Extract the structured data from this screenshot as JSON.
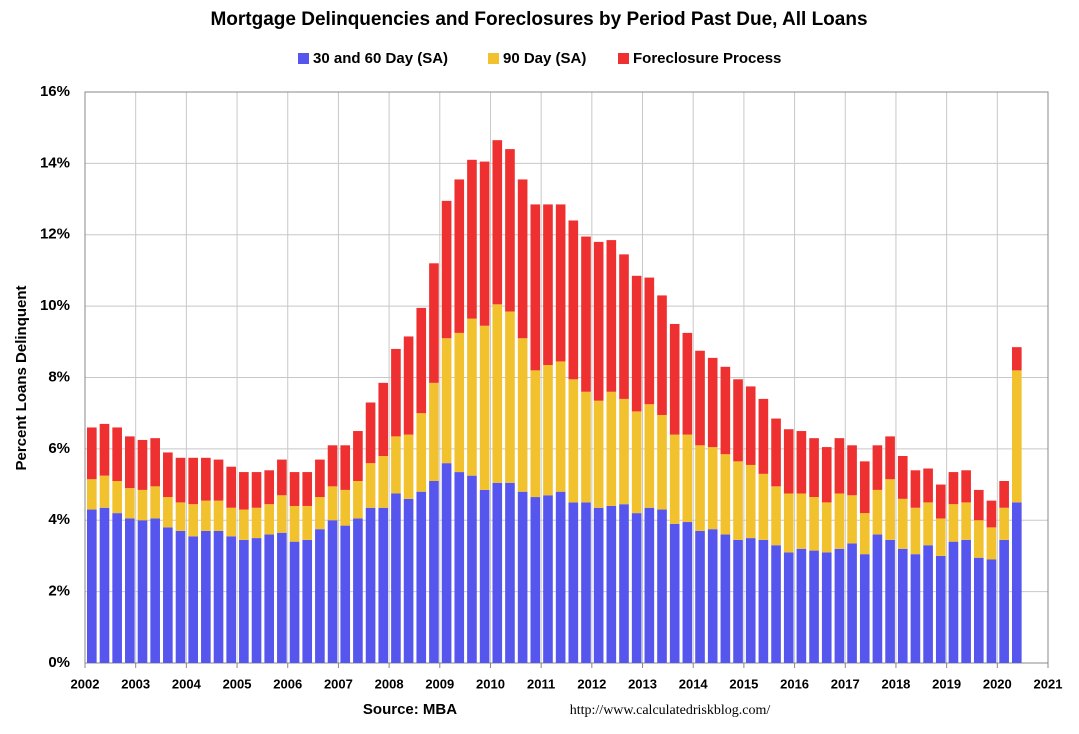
{
  "chart_data": {
    "type": "stacked_bar",
    "title": "Mortgage Delinquencies and Foreclosures by Period Past Due, All Loans",
    "y_label": "Percent Loans Delinquent",
    "source": "Source: MBA",
    "url": "http://www.calculatedriskblog.com/",
    "x": [
      2002,
      2002.25,
      2002.5,
      2002.75,
      2003,
      2003.25,
      2003.5,
      2003.75,
      2004,
      2004.25,
      2004.5,
      2004.75,
      2005,
      2005.25,
      2005.5,
      2005.75,
      2006,
      2006.25,
      2006.5,
      2006.75,
      2007,
      2007.25,
      2007.5,
      2007.75,
      2008,
      2008.25,
      2008.5,
      2008.75,
      2009,
      2009.25,
      2009.5,
      2009.75,
      2010,
      2010.25,
      2010.5,
      2010.75,
      2011,
      2011.25,
      2011.5,
      2011.75,
      2012,
      2012.25,
      2012.5,
      2012.75,
      2013,
      2013.25,
      2013.5,
      2013.75,
      2014,
      2014.25,
      2014.5,
      2014.75,
      2015,
      2015.25,
      2015.5,
      2015.75,
      2016,
      2016.25,
      2016.5,
      2016.75,
      2017,
      2017.25,
      2017.5,
      2017.75,
      2018,
      2018.25,
      2018.5,
      2018.75,
      2019,
      2019.25,
      2019.5,
      2019.75,
      2020,
      2020.25
    ],
    "series": [
      {
        "name": "30 and 60 Day (SA)",
        "color": "#5656ee",
        "values": [
          4.3,
          4.35,
          4.2,
          4.05,
          4.0,
          4.05,
          3.8,
          3.7,
          3.55,
          3.7,
          3.7,
          3.55,
          3.45,
          3.5,
          3.6,
          3.65,
          3.4,
          3.45,
          3.75,
          4.0,
          3.85,
          4.05,
          4.35,
          4.35,
          4.75,
          4.6,
          4.8,
          5.1,
          5.6,
          5.35,
          5.25,
          4.85,
          5.05,
          5.05,
          4.8,
          4.65,
          4.7,
          4.8,
          4.5,
          4.5,
          4.35,
          4.4,
          4.45,
          4.2,
          4.35,
          4.3,
          3.9,
          3.95,
          3.7,
          3.75,
          3.6,
          3.45,
          3.5,
          3.45,
          3.3,
          3.1,
          3.2,
          3.15,
          3.1,
          3.2,
          3.35,
          3.05,
          3.6,
          3.45,
          3.2,
          3.05,
          3.3,
          3.0,
          3.4,
          3.45,
          2.95,
          2.9,
          3.45,
          4.5
        ]
      },
      {
        "name": "90 Day (SA)",
        "color": "#f2c12e",
        "values": [
          0.85,
          0.9,
          0.9,
          0.85,
          0.85,
          0.9,
          0.85,
          0.8,
          0.9,
          0.85,
          0.85,
          0.8,
          0.85,
          0.85,
          0.85,
          1.05,
          1.0,
          0.95,
          0.9,
          0.95,
          1.0,
          1.05,
          1.25,
          1.45,
          1.6,
          1.8,
          2.2,
          2.75,
          3.5,
          3.9,
          4.4,
          4.6,
          5.0,
          4.8,
          4.3,
          3.55,
          3.65,
          3.65,
          3.45,
          3.1,
          3.0,
          3.2,
          2.95,
          2.85,
          2.9,
          2.65,
          2.5,
          2.45,
          2.4,
          2.3,
          2.25,
          2.2,
          2.05,
          1.85,
          1.65,
          1.65,
          1.55,
          1.5,
          1.4,
          1.55,
          1.35,
          1.15,
          1.25,
          1.7,
          1.4,
          1.3,
          1.2,
          1.05,
          1.05,
          1.05,
          1.05,
          0.9,
          0.9,
          3.7
        ]
      },
      {
        "name": "Foreclosure Process",
        "color": "#ee3030",
        "values": [
          1.45,
          1.45,
          1.5,
          1.45,
          1.4,
          1.35,
          1.25,
          1.25,
          1.3,
          1.2,
          1.15,
          1.15,
          1.05,
          1.0,
          0.95,
          1.0,
          0.95,
          0.95,
          1.05,
          1.15,
          1.25,
          1.4,
          1.7,
          2.05,
          2.45,
          2.75,
          2.95,
          3.35,
          3.85,
          4.3,
          4.45,
          4.6,
          4.6,
          4.55,
          4.45,
          4.65,
          4.5,
          4.4,
          4.45,
          4.35,
          4.45,
          4.25,
          4.05,
          3.8,
          3.55,
          3.35,
          3.1,
          2.85,
          2.65,
          2.5,
          2.45,
          2.3,
          2.2,
          2.1,
          1.9,
          1.8,
          1.75,
          1.65,
          1.55,
          1.55,
          1.4,
          1.45,
          1.25,
          1.2,
          1.2,
          1.05,
          0.95,
          0.95,
          0.9,
          0.9,
          0.85,
          0.75,
          0.75,
          0.65
        ]
      }
    ],
    "xlim": [
      2002,
      2021
    ],
    "xticks": [
      2002,
      2003,
      2004,
      2005,
      2006,
      2007,
      2008,
      2009,
      2010,
      2011,
      2012,
      2013,
      2014,
      2015,
      2016,
      2017,
      2018,
      2019,
      2020,
      2021
    ],
    "ylim": [
      0,
      16
    ],
    "yticks": [
      {
        "value": 0,
        "label": "0%"
      },
      {
        "value": 2,
        "label": "2%"
      },
      {
        "value": 4,
        "label": "4%"
      },
      {
        "value": 6,
        "label": "6%"
      },
      {
        "value": 8,
        "label": "8%"
      },
      {
        "value": 10,
        "label": "10%"
      },
      {
        "value": 12,
        "label": "12%"
      },
      {
        "value": 14,
        "label": "14%"
      },
      {
        "value": 16,
        "label": "16%"
      }
    ],
    "grid": true
  }
}
